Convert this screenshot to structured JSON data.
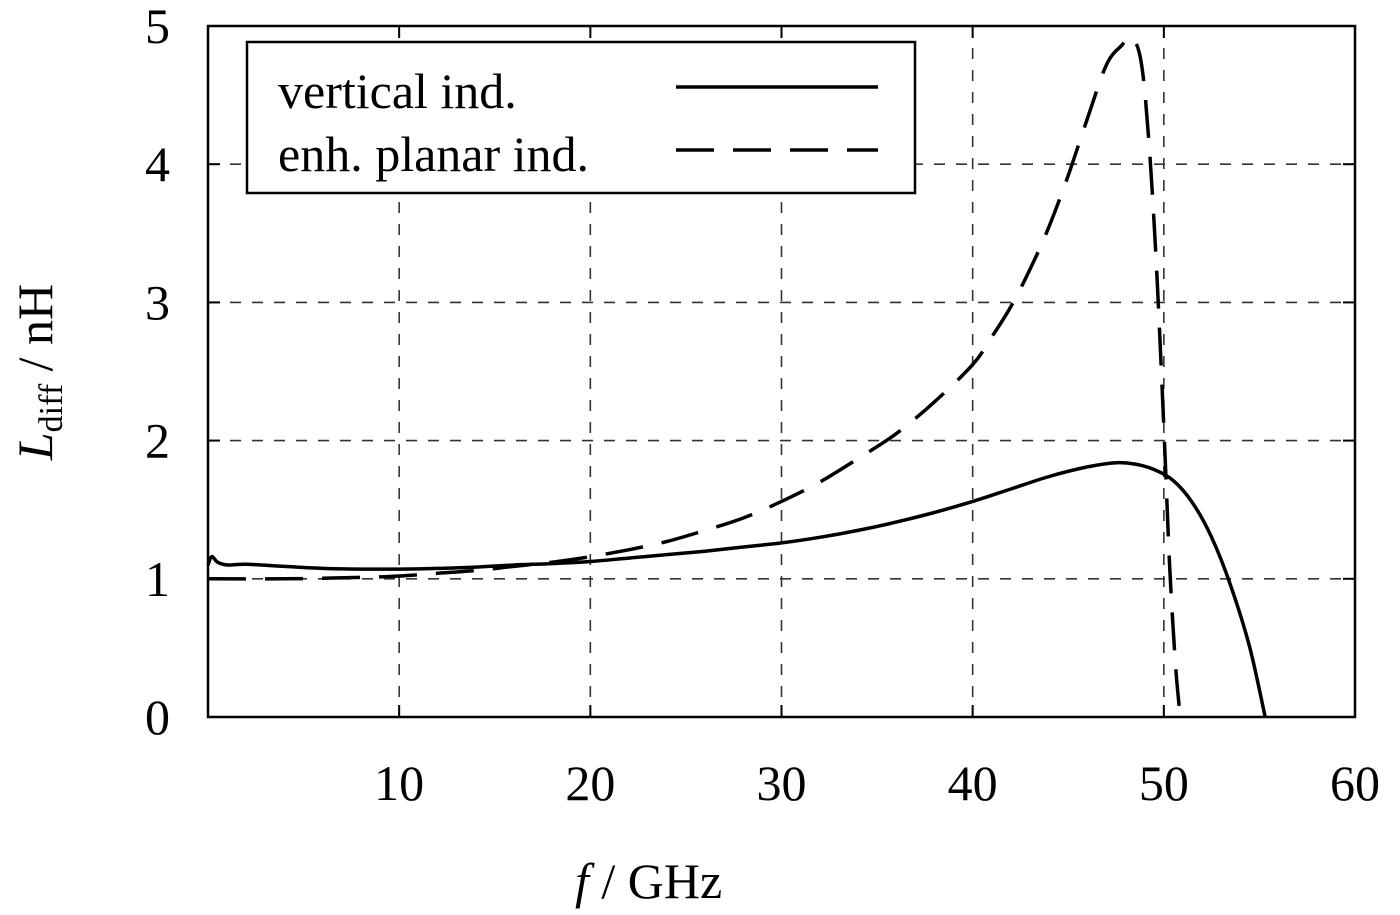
{
  "chart_data": {
    "type": "line",
    "title": "",
    "xlabel": "f / GHz",
    "xlabel_parts": {
      "symbol": "f",
      "unit": " / GHz"
    },
    "ylabel": "L_diff / nH",
    "ylabel_parts": {
      "symbol": "L",
      "subscript": "diff",
      "unit": " / nH"
    },
    "xlim": [
      0,
      60
    ],
    "ylim": [
      0,
      5
    ],
    "x_ticks": [
      10,
      20,
      30,
      40,
      50,
      60
    ],
    "x_tick_labels": [
      "10",
      "20",
      "30",
      "40",
      "50",
      "60"
    ],
    "y_ticks": [
      0,
      1,
      2,
      3,
      4,
      5
    ],
    "y_tick_labels": [
      "0",
      "1",
      "2",
      "3",
      "4",
      "5"
    ],
    "grid": true,
    "grid_style": "dashed",
    "legend_position": "upper left",
    "series": [
      {
        "name": "vertical ind.",
        "line_style": "solid",
        "color": "#000000",
        "x": [
          0,
          0.2,
          0.5,
          1,
          2,
          4,
          6,
          8,
          10,
          12,
          14,
          16,
          18,
          20,
          22,
          24,
          26,
          28,
          30,
          32,
          34,
          36,
          38,
          40,
          42,
          44,
          46,
          47.5,
          48.5,
          49.5,
          50.5,
          51.5,
          52.5,
          53.5,
          54.5,
          55.3
        ],
        "y": [
          1.1,
          1.16,
          1.12,
          1.1,
          1.105,
          1.09,
          1.075,
          1.07,
          1.07,
          1.075,
          1.085,
          1.1,
          1.11,
          1.125,
          1.15,
          1.175,
          1.2,
          1.23,
          1.26,
          1.3,
          1.35,
          1.41,
          1.48,
          1.56,
          1.65,
          1.74,
          1.81,
          1.84,
          1.83,
          1.79,
          1.71,
          1.55,
          1.3,
          0.95,
          0.5,
          0.0
        ]
      },
      {
        "name": "enh. planar ind.",
        "line_style": "dashed",
        "color": "#000000",
        "x": [
          0,
          4,
          8,
          10,
          12,
          14,
          16,
          18,
          20,
          22,
          24,
          26,
          28,
          30,
          32,
          34,
          36,
          38,
          40,
          41,
          42,
          43,
          44,
          45,
          46,
          47,
          47.8,
          48.3,
          48.8,
          49.2,
          49.6,
          50.0,
          50.3,
          50.6,
          50.8
        ],
        "y": [
          1.0,
          1.0,
          1.01,
          1.02,
          1.04,
          1.06,
          1.09,
          1.12,
          1.16,
          1.21,
          1.27,
          1.35,
          1.44,
          1.56,
          1.7,
          1.87,
          2.05,
          2.28,
          2.55,
          2.75,
          2.97,
          3.24,
          3.55,
          3.92,
          4.33,
          4.72,
          4.86,
          4.92,
          4.75,
          4.2,
          3.3,
          2.1,
          1.1,
          0.4,
          0.08
        ]
      }
    ]
  },
  "legend": {
    "items": [
      {
        "label": "vertical ind.",
        "style": "solid"
      },
      {
        "label": "enh. planar ind.",
        "style": "dashed"
      }
    ]
  }
}
